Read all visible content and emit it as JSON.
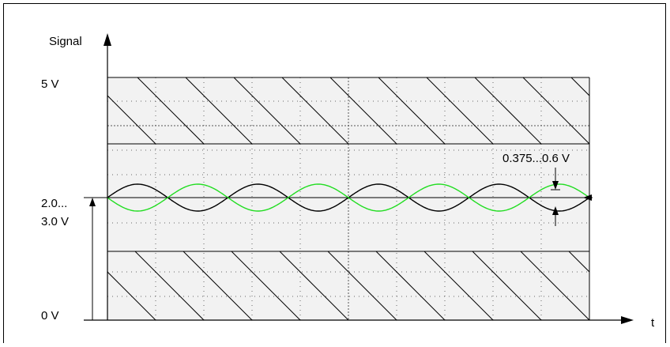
{
  "labels": {
    "y_axis": "Signal",
    "x_axis": "t",
    "top_level": "5 V",
    "mid_level_line1": "2.0...",
    "mid_level_line2": "3.0 V",
    "bottom_level": "0 V",
    "amplitude": "0.375...0.6 V"
  },
  "colors": {
    "trace_a": "#000000",
    "trace_b": "#22dd22",
    "plot_bg": "#f2f2f2",
    "frame": "#000000"
  },
  "signal": {
    "offset_range_v": [
      2.0,
      3.0
    ],
    "amplitude_range_v": [
      0.375,
      0.6
    ],
    "full_scale_v": 5,
    "cycles_shown": 4,
    "trace_a_name": "",
    "trace_b_name": ""
  }
}
